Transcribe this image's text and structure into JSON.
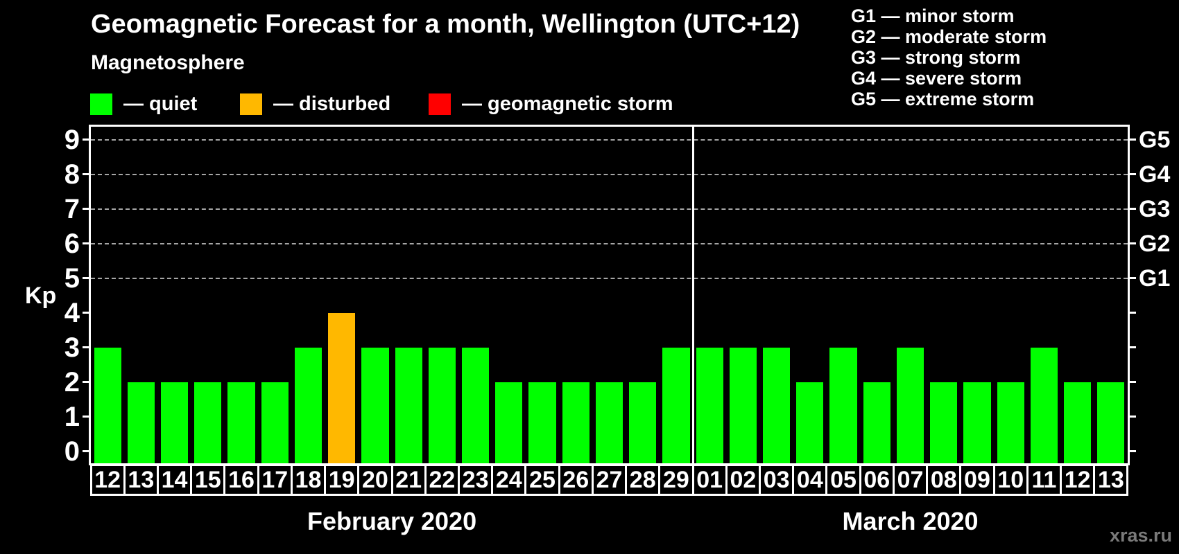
{
  "header": {
    "title": "Geomagnetic Forecast for a month, Wellington (UTC+12)",
    "subtitle": "Magnetosphere"
  },
  "legend": {
    "items": [
      {
        "name": "quiet",
        "label": "— quiet",
        "color": "#00ff00"
      },
      {
        "name": "disturbed",
        "label": "— disturbed",
        "color": "#ffb800"
      },
      {
        "name": "storm",
        "label": "— geomagnetic storm",
        "color": "#ff0000"
      }
    ]
  },
  "g_scale_legend": {
    "lines": [
      "G1 — minor storm",
      "G2 — moderate storm",
      "G3 — strong storm",
      "G4 — severe storm",
      "G5 — extreme storm"
    ]
  },
  "watermark": "xras.ru",
  "chart_data": {
    "type": "bar",
    "title": "Geomagnetic Forecast for a month, Wellington (UTC+12)",
    "ylabel": "Kp",
    "ylim": [
      0,
      9
    ],
    "y_ticks": [
      0,
      1,
      2,
      3,
      4,
      5,
      6,
      7,
      8,
      9
    ],
    "grid": "horizontal dashed lines at Kp 5-9 only",
    "legend_position": "top",
    "g_levels": [
      {
        "label": "G1",
        "kp": 5
      },
      {
        "label": "G2",
        "kp": 6
      },
      {
        "label": "G3",
        "kp": 7
      },
      {
        "label": "G4",
        "kp": 8
      },
      {
        "label": "G5",
        "kp": 9
      }
    ],
    "months": [
      {
        "label": "February 2020",
        "days": [
          {
            "day": "12",
            "kp": 3,
            "status": "quiet"
          },
          {
            "day": "13",
            "kp": 2,
            "status": "quiet"
          },
          {
            "day": "14",
            "kp": 2,
            "status": "quiet"
          },
          {
            "day": "15",
            "kp": 2,
            "status": "quiet"
          },
          {
            "day": "16",
            "kp": 2,
            "status": "quiet"
          },
          {
            "day": "17",
            "kp": 2,
            "status": "quiet"
          },
          {
            "day": "18",
            "kp": 3,
            "status": "quiet"
          },
          {
            "day": "19",
            "kp": 4,
            "status": "disturbed"
          },
          {
            "day": "20",
            "kp": 3,
            "status": "quiet"
          },
          {
            "day": "21",
            "kp": 3,
            "status": "quiet"
          },
          {
            "day": "22",
            "kp": 3,
            "status": "quiet"
          },
          {
            "day": "23",
            "kp": 3,
            "status": "quiet"
          },
          {
            "day": "24",
            "kp": 2,
            "status": "quiet"
          },
          {
            "day": "25",
            "kp": 2,
            "status": "quiet"
          },
          {
            "day": "26",
            "kp": 2,
            "status": "quiet"
          },
          {
            "day": "27",
            "kp": 2,
            "status": "quiet"
          },
          {
            "day": "28",
            "kp": 2,
            "status": "quiet"
          },
          {
            "day": "29",
            "kp": 3,
            "status": "quiet"
          }
        ]
      },
      {
        "label": "March 2020",
        "days": [
          {
            "day": "01",
            "kp": 3,
            "status": "quiet"
          },
          {
            "day": "02",
            "kp": 3,
            "status": "quiet"
          },
          {
            "day": "03",
            "kp": 3,
            "status": "quiet"
          },
          {
            "day": "04",
            "kp": 2,
            "status": "quiet"
          },
          {
            "day": "05",
            "kp": 3,
            "status": "quiet"
          },
          {
            "day": "06",
            "kp": 2,
            "status": "quiet"
          },
          {
            "day": "07",
            "kp": 3,
            "status": "quiet"
          },
          {
            "day": "08",
            "kp": 2,
            "status": "quiet"
          },
          {
            "day": "09",
            "kp": 2,
            "status": "quiet"
          },
          {
            "day": "10",
            "kp": 2,
            "status": "quiet"
          },
          {
            "day": "11",
            "kp": 3,
            "status": "quiet"
          },
          {
            "day": "12",
            "kp": 2,
            "status": "quiet"
          },
          {
            "day": "13",
            "kp": 2,
            "status": "quiet"
          }
        ]
      }
    ]
  }
}
